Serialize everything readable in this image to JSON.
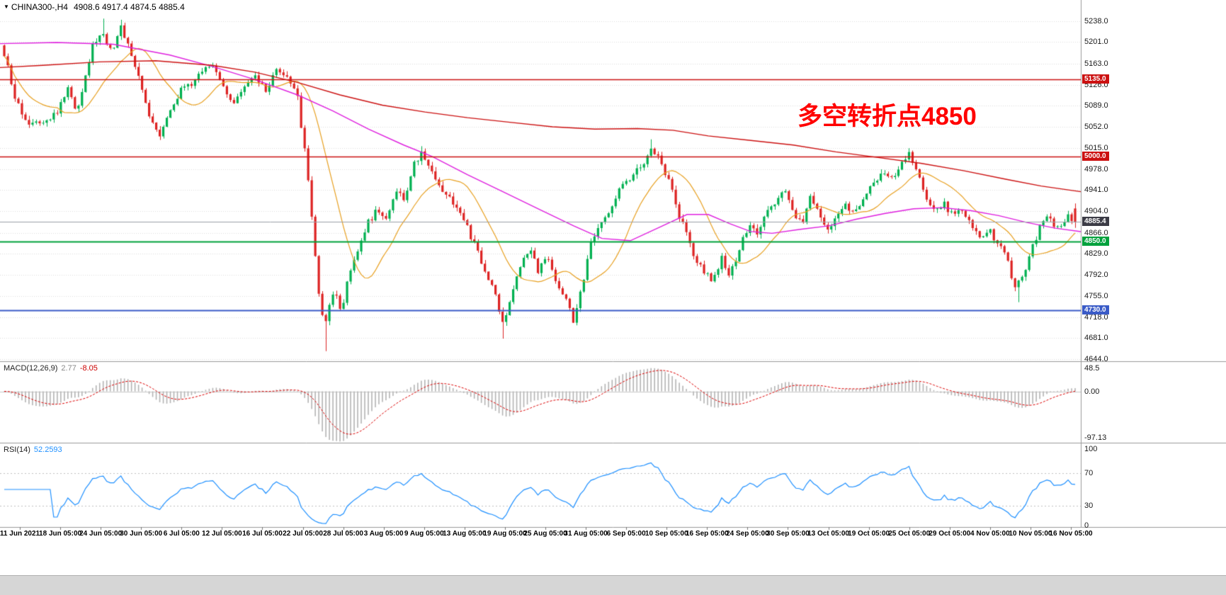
{
  "header": {
    "symbol": "CHINA300-,H4",
    "ohlc": "4908.6 4917.4 4874.5 4885.4",
    "dropdown_icon": "triangle-down-icon"
  },
  "annotation": {
    "text": "多空转折点4850",
    "color": "#ff0000"
  },
  "indicators": {
    "macd": {
      "name": "MACD(12,26,9)",
      "value_main": "2.77",
      "value_signal": "-8.05",
      "scale_ticks": [
        "48.5",
        "0.00",
        "-97.13"
      ],
      "scale_values": [
        48.5,
        0,
        -97.13
      ]
    },
    "rsi": {
      "name": "RSI(14)",
      "value": "52.2593",
      "scale_ticks": [
        "100",
        "70",
        "30",
        "0"
      ],
      "scale_values": [
        100,
        70,
        30,
        0
      ]
    }
  },
  "price_scale": {
    "ticks": [
      "5238.0",
      "5201.0",
      "5163.0",
      "5126.0",
      "5089.0",
      "5052.0",
      "5015.0",
      "4978.0",
      "4941.0",
      "4904.0",
      "4866.0",
      "4829.0",
      "4792.0",
      "4755.0",
      "4718.0",
      "4681.0",
      "4644.0"
    ],
    "badges": [
      {
        "text": "5135.0",
        "price": 5135.0,
        "bg": "#cc1111"
      },
      {
        "text": "5000.0",
        "price": 5000.0,
        "bg": "#cc1111"
      },
      {
        "text": "4885.4",
        "price": 4885.4,
        "bg": "#3c3c46"
      },
      {
        "text": "4850.0",
        "price": 4850.0,
        "bg": "#00a13c"
      },
      {
        "text": "4730.0",
        "price": 4730.0,
        "bg": "#3a5bc7"
      }
    ]
  },
  "time_scale": {
    "labels": [
      "11 Jun 2021",
      "18 Jun 05:00",
      "24 Jun 05:00",
      "30 Jun 05:00",
      "6 Jul 05:00",
      "12 Jul 05:00",
      "16 Jul 05:00",
      "22 Jul 05:00",
      "28 Jul 05:00",
      "3 Aug 05:00",
      "9 Aug 05:00",
      "13 Aug 05:00",
      "19 Aug 05:00",
      "25 Aug 05:00",
      "31 Aug 05:00",
      "6 Sep 05:00",
      "10 Sep 05:00",
      "16 Sep 05:00",
      "24 Sep 05:00",
      "30 Sep 05:00",
      "13 Oct 05:00",
      "19 Oct 05:00",
      "25 Oct 05:00",
      "29 Oct 05:00",
      "4 Nov 05:00",
      "10 Nov 05:00",
      "16 Nov 05:00"
    ]
  },
  "chart_data": {
    "type": "candlestick",
    "symbol": "CHINA300-",
    "timeframe": "H4",
    "current_ohlc": {
      "open": 4908.6,
      "high": 4917.4,
      "low": 4874.5,
      "close": 4885.4
    },
    "y_axis": {
      "min": 4644,
      "max": 5238,
      "ticks": [
        5238,
        5201,
        5163,
        5126,
        5089,
        5052,
        5015,
        4978,
        4941,
        4904,
        4866,
        4829,
        4792,
        4755,
        4718,
        4681,
        4644
      ]
    },
    "x_tick_labels": [
      "11 Jun 2021",
      "18 Jun 05:00",
      "24 Jun 05:00",
      "30 Jun 05:00",
      "6 Jul 05:00",
      "12 Jul 05:00",
      "16 Jul 05:00",
      "22 Jul 05:00",
      "28 Jul 05:00",
      "3 Aug 05:00",
      "9 Aug 05:00",
      "13 Aug 05:00",
      "19 Aug 05:00",
      "25 Aug 05:00",
      "31 Aug 05:00",
      "6 Sep 05:00",
      "10 Sep 05:00",
      "16 Sep 05:00",
      "24 Sep 05:00",
      "30 Sep 05:00",
      "13 Oct 05:00",
      "19 Oct 05:00",
      "25 Oct 05:00",
      "29 Oct 05:00",
      "4 Nov 05:00",
      "10 Nov 05:00",
      "16 Nov 05:00"
    ],
    "horizontal_lines": [
      {
        "price": 5135.0,
        "color": "#cc1111",
        "width": 1.6,
        "label": "5135.0"
      },
      {
        "price": 5000.0,
        "color": "#cc1111",
        "width": 1.6,
        "label": "5000.0"
      },
      {
        "price": 4885.4,
        "color": "#9aa0a8",
        "width": 1,
        "label": "4885.4"
      },
      {
        "price": 4850.0,
        "color": "#00a13c",
        "width": 2,
        "label": "4850.0"
      },
      {
        "price": 4730.0,
        "color": "#3a5bc7",
        "width": 2.2,
        "label": "4730.0"
      }
    ],
    "candles": {
      "count": 304,
      "up_color": "#00b050",
      "down_color": "#dd2222"
    },
    "price_path": [
      [
        0,
        5185
      ],
      [
        10,
        5160
      ],
      [
        22,
        5095
      ],
      [
        40,
        5060
      ],
      [
        60,
        5065
      ],
      [
        80,
        5075
      ],
      [
        95,
        5120
      ],
      [
        108,
        5080
      ],
      [
        120,
        5140
      ],
      [
        132,
        5200
      ],
      [
        145,
        5215
      ],
      [
        158,
        5185
      ],
      [
        170,
        5228
      ],
      [
        182,
        5195
      ],
      [
        195,
        5140
      ],
      [
        210,
        5075
      ],
      [
        225,
        5040
      ],
      [
        240,
        5080
      ],
      [
        255,
        5115
      ],
      [
        270,
        5125
      ],
      [
        285,
        5150
      ],
      [
        300,
        5160
      ],
      [
        315,
        5128
      ],
      [
        330,
        5090
      ],
      [
        345,
        5118
      ],
      [
        360,
        5142
      ],
      [
        375,
        5112
      ],
      [
        390,
        5148
      ],
      [
        405,
        5138
      ],
      [
        418,
        5120
      ],
      [
        430,
        5010
      ],
      [
        440,
        4900
      ],
      [
        450,
        4760
      ],
      [
        458,
        4705
      ],
      [
        466,
        4745
      ],
      [
        474,
        4758
      ],
      [
        482,
        4732
      ],
      [
        492,
        4788
      ],
      [
        504,
        4832
      ],
      [
        518,
        4882
      ],
      [
        532,
        4905
      ],
      [
        545,
        4885
      ],
      [
        558,
        4945
      ],
      [
        570,
        4920
      ],
      [
        583,
        4982
      ],
      [
        596,
        5008
      ],
      [
        610,
        4972
      ],
      [
        626,
        4940
      ],
      [
        642,
        4918
      ],
      [
        658,
        4878
      ],
      [
        670,
        4845
      ],
      [
        684,
        4798
      ],
      [
        698,
        4768
      ],
      [
        710,
        4702
      ],
      [
        720,
        4742
      ],
      [
        733,
        4808
      ],
      [
        746,
        4838
      ],
      [
        760,
        4800
      ],
      [
        773,
        4828
      ],
      [
        786,
        4778
      ],
      [
        798,
        4752
      ],
      [
        810,
        4712
      ],
      [
        822,
        4772
      ],
      [
        835,
        4848
      ],
      [
        850,
        4882
      ],
      [
        866,
        4920
      ],
      [
        882,
        4958
      ],
      [
        896,
        4968
      ],
      [
        910,
        4990
      ],
      [
        921,
        5012
      ],
      [
        931,
        4998
      ],
      [
        944,
        4958
      ],
      [
        957,
        4900
      ],
      [
        969,
        4868
      ],
      [
        981,
        4822
      ],
      [
        994,
        4800
      ],
      [
        1007,
        4782
      ],
      [
        1019,
        4820
      ],
      [
        1031,
        4792
      ],
      [
        1044,
        4840
      ],
      [
        1057,
        4878
      ],
      [
        1069,
        4860
      ],
      [
        1081,
        4898
      ],
      [
        1094,
        4918
      ],
      [
        1107,
        4938
      ],
      [
        1119,
        4908
      ],
      [
        1131,
        4880
      ],
      [
        1144,
        4928
      ],
      [
        1157,
        4898
      ],
      [
        1169,
        4872
      ],
      [
        1181,
        4898
      ],
      [
        1194,
        4918
      ],
      [
        1207,
        4898
      ],
      [
        1219,
        4928
      ],
      [
        1231,
        4948
      ],
      [
        1244,
        4968
      ],
      [
        1257,
        4958
      ],
      [
        1269,
        4982
      ],
      [
        1284,
        5002
      ],
      [
        1297,
        4962
      ],
      [
        1309,
        4925
      ],
      [
        1321,
        4900
      ],
      [
        1334,
        4915
      ],
      [
        1347,
        4895
      ],
      [
        1359,
        4908
      ],
      [
        1371,
        4880
      ],
      [
        1384,
        4855
      ],
      [
        1397,
        4868
      ],
      [
        1409,
        4850
      ],
      [
        1421,
        4820
      ],
      [
        1433,
        4772
      ],
      [
        1444,
        4790
      ],
      [
        1457,
        4838
      ],
      [
        1469,
        4878
      ],
      [
        1481,
        4895
      ],
      [
        1494,
        4870
      ],
      [
        1507,
        4898
      ],
      [
        1518,
        4886
      ]
    ],
    "wick_lows": [
      [
        458,
        4658
      ],
      [
        712,
        4680
      ],
      [
        1436,
        4744
      ]
    ],
    "wick_highs": [
      [
        145,
        5242
      ],
      [
        170,
        5240
      ],
      [
        596,
        5018
      ],
      [
        921,
        5030
      ],
      [
        1284,
        5012
      ]
    ],
    "ma_lines": [
      {
        "name": "ma-fast",
        "color": "#e8a020",
        "type": "sma",
        "period": 16
      },
      {
        "name": "ma-mid",
        "color": "#df20df",
        "points": [
          [
            0,
            5198
          ],
          [
            80,
            5200
          ],
          [
            160,
            5197
          ],
          [
            240,
            5178
          ],
          [
            300,
            5158
          ],
          [
            360,
            5135
          ],
          [
            420,
            5108
          ],
          [
            470,
            5080
          ],
          [
            520,
            5048
          ],
          [
            570,
            5020
          ],
          [
            610,
            5000
          ],
          [
            660,
            4968
          ],
          [
            710,
            4938
          ],
          [
            760,
            4908
          ],
          [
            810,
            4878
          ],
          [
            850,
            4856
          ],
          [
            890,
            4852
          ],
          [
            930,
            4875
          ],
          [
            970,
            4898
          ],
          [
            1000,
            4898
          ],
          [
            1030,
            4882
          ],
          [
            1060,
            4868
          ],
          [
            1090,
            4865
          ],
          [
            1130,
            4872
          ],
          [
            1170,
            4878
          ],
          [
            1210,
            4890
          ],
          [
            1250,
            4900
          ],
          [
            1290,
            4908
          ],
          [
            1330,
            4910
          ],
          [
            1370,
            4905
          ],
          [
            1410,
            4896
          ],
          [
            1450,
            4884
          ],
          [
            1490,
            4874
          ],
          [
            1526,
            4868
          ]
        ]
      },
      {
        "name": "ma-slow",
        "color": "#cc1111",
        "points": [
          [
            0,
            5156
          ],
          [
            60,
            5160
          ],
          [
            140,
            5166
          ],
          [
            220,
            5168
          ],
          [
            300,
            5160
          ],
          [
            360,
            5148
          ],
          [
            420,
            5130
          ],
          [
            480,
            5108
          ],
          [
            540,
            5090
          ],
          [
            600,
            5078
          ],
          [
            660,
            5068
          ],
          [
            720,
            5060
          ],
          [
            780,
            5052
          ],
          [
            840,
            5048
          ],
          [
            900,
            5049
          ],
          [
            950,
            5046
          ],
          [
            1000,
            5036
          ],
          [
            1060,
            5028
          ],
          [
            1120,
            5020
          ],
          [
            1180,
            5008
          ],
          [
            1240,
            4998
          ],
          [
            1300,
            4988
          ],
          [
            1360,
            4975
          ],
          [
            1420,
            4960
          ],
          [
            1470,
            4948
          ],
          [
            1526,
            4938
          ]
        ]
      }
    ],
    "macd": {
      "fast": 12,
      "slow": 26,
      "signal": 9,
      "histogram_color": "#b4b4b4",
      "signal_color": "#dd0000",
      "last_main": 2.77,
      "last_signal": -8.05
    },
    "rsi": {
      "period": 14,
      "color": "#1e90ff",
      "levels": [
        70,
        30
      ],
      "last": 52.2593
    }
  }
}
